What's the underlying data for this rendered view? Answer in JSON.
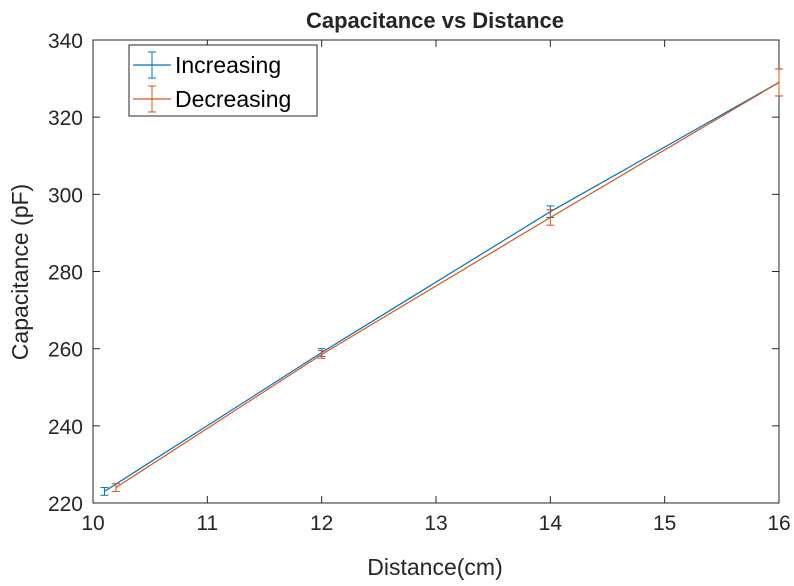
{
  "chart_data": {
    "type": "line",
    "title": "Capacitance vs Distance",
    "xlabel": "Distance(cm)",
    "ylabel": "Capacitance (pF)",
    "xlim": [
      10,
      16
    ],
    "ylim": [
      220,
      340
    ],
    "xticks": [
      "10",
      "11",
      "12",
      "13",
      "14",
      "15",
      "16"
    ],
    "yticks": [
      "220",
      "240",
      "260",
      "280",
      "300",
      "320",
      "340"
    ],
    "grid": false,
    "legend": "top-left",
    "series": [
      {
        "name": "Increasing",
        "color": "#0072BD",
        "x": [
          10.1,
          12,
          14,
          16
        ],
        "y": [
          223,
          259,
          295.5,
          329
        ],
        "err": [
          1,
          1,
          1.5,
          3.5
        ]
      },
      {
        "name": "Decreasing",
        "color": "#D95319",
        "x": [
          10.2,
          12,
          14,
          16
        ],
        "y": [
          224,
          258.5,
          294,
          329
        ],
        "err": [
          1,
          1,
          2,
          3.5
        ]
      }
    ]
  }
}
